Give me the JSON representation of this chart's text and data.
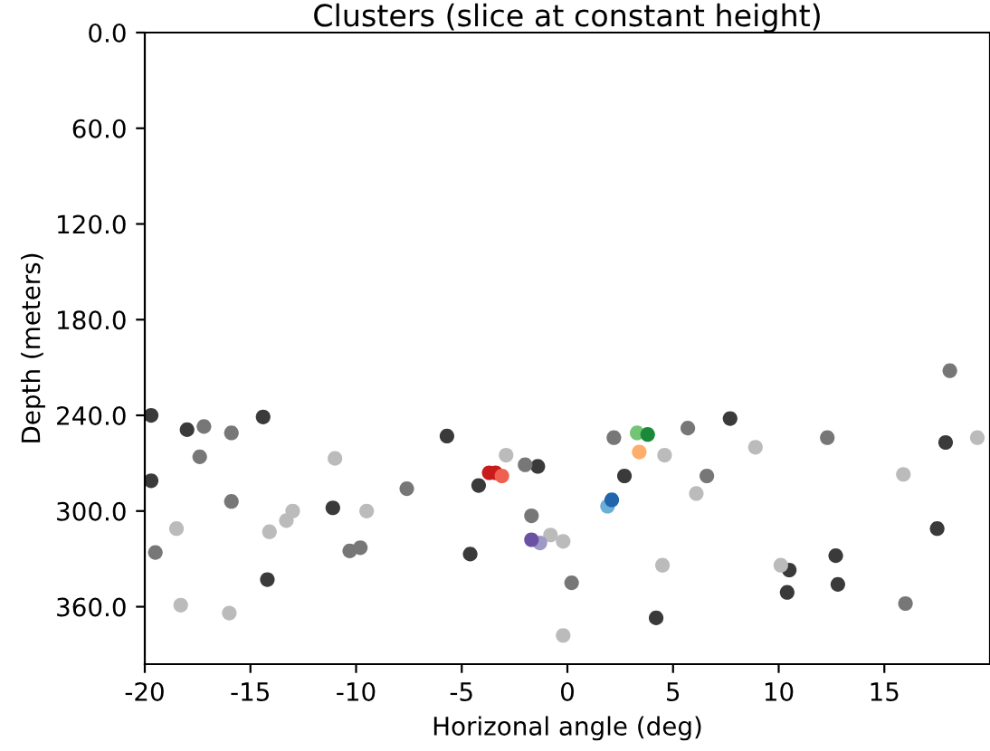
{
  "chart_data": {
    "type": "scatter",
    "title": "Clusters (slice at constant height)",
    "xlabel": "Horizonal angle (deg)",
    "ylabel": "Depth (meters)",
    "xlim": [
      -20,
      20
    ],
    "xticks": [
      -20,
      -15,
      -10,
      -5,
      0,
      5,
      10,
      15
    ],
    "ylim": [
      396,
      0
    ],
    "yticks": [
      {
        "value": 0,
        "label": "0.0"
      },
      {
        "value": 60,
        "label": "60.0"
      },
      {
        "value": 120,
        "label": "120.0"
      },
      {
        "value": 180,
        "label": "180.0"
      },
      {
        "value": 240,
        "label": "240.0"
      },
      {
        "value": 300,
        "label": "300.0"
      },
      {
        "value": 360,
        "label": "360.0"
      }
    ],
    "grid": false,
    "marker": "circle",
    "series": [
      {
        "color": "#3a3a3a",
        "x": [
          -19.7,
          -19.7,
          -18.0,
          -14.4,
          -11.1,
          -14.2,
          -5.7,
          -4.2,
          -1.4,
          -4.6,
          2.7,
          4.2,
          7.7,
          17.9,
          17.5,
          12.7,
          10.5,
          10.4,
          12.8
        ],
        "values": [
          240,
          281,
          249,
          241,
          298,
          343,
          253,
          284,
          272,
          327,
          278,
          367,
          242,
          257,
          311,
          328,
          337,
          351,
          346
        ]
      },
      {
        "color": "#777777",
        "x": [
          -17.2,
          -15.9,
          -17.4,
          -15.9,
          -19.5,
          -7.6,
          -10.3,
          -9.8,
          -1.7,
          0.2,
          2.2,
          5.7,
          -2.0,
          12.3,
          18.1,
          6.6,
          16.0
        ],
        "values": [
          247,
          251,
          266,
          294,
          326,
          286,
          325,
          323,
          303,
          345,
          254,
          248,
          271,
          254,
          212,
          278,
          358
        ]
      },
      {
        "color": "#bbbbbb",
        "x": [
          -11.0,
          -18.5,
          -14.1,
          -13.3,
          -13.0,
          -9.5,
          -18.3,
          -16.0,
          -2.9,
          -0.8,
          -0.2,
          4.6,
          4.5,
          -0.2,
          6.1,
          8.9,
          19.4,
          15.9,
          10.1
        ],
        "values": [
          267,
          311,
          313,
          306,
          300,
          300,
          359,
          364,
          265,
          315,
          319,
          265,
          334,
          378,
          289,
          260,
          254,
          277,
          334
        ]
      },
      {
        "color": "#c81c1c",
        "x": [
          -3.7,
          -3.4
        ],
        "values": [
          276,
          276
        ]
      },
      {
        "color": "#f06050",
        "x": [
          -3.1
        ],
        "values": [
          278
        ]
      },
      {
        "color": "#74c476",
        "x": [
          3.3
        ],
        "values": [
          251
        ]
      },
      {
        "color": "#1a8a3a",
        "x": [
          3.8
        ],
        "values": [
          252
        ]
      },
      {
        "color": "#fdae6b",
        "x": [
          3.4
        ],
        "values": [
          263
        ]
      },
      {
        "color": "#6baed6",
        "x": [
          1.9
        ],
        "values": [
          297
        ]
      },
      {
        "color": "#2166ac",
        "x": [
          2.1
        ],
        "values": [
          293
        ]
      },
      {
        "color": "#9e9ac8",
        "x": [
          -1.3
        ],
        "values": [
          320
        ]
      },
      {
        "color": "#6a51a3",
        "x": [
          -1.7
        ],
        "values": [
          318
        ]
      }
    ]
  }
}
